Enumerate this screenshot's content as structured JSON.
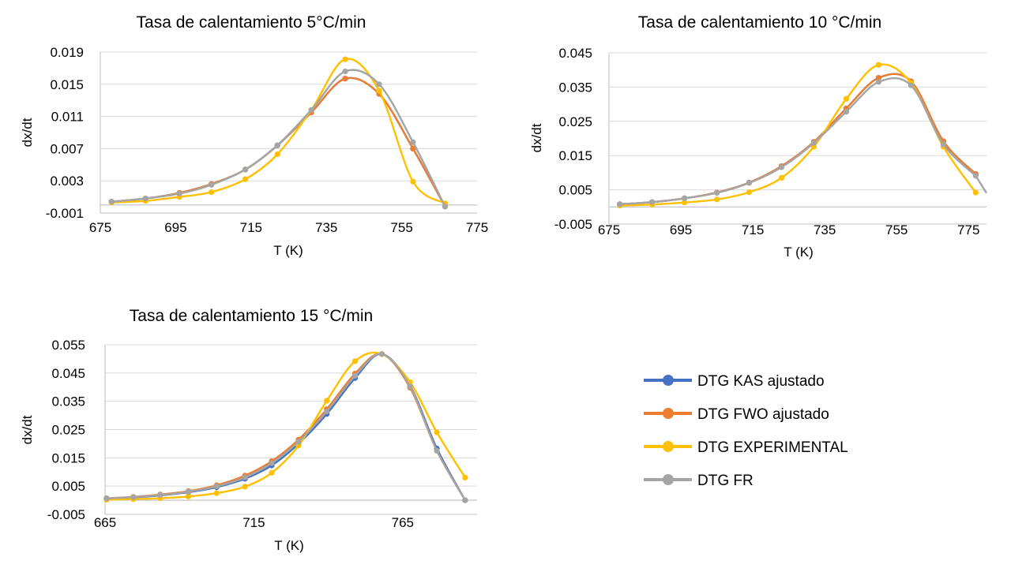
{
  "series_styles": [
    {
      "name": "DTG KAS ajustado",
      "color": "#4472c4"
    },
    {
      "name": "DTG FWO ajustado",
      "color": "#ed7d31"
    },
    {
      "name": "DTG EXPERIMENTAL",
      "color": "#ffc000"
    },
    {
      "name": "DTG FR",
      "color": "#a5a5a5"
    }
  ],
  "legend": {
    "items": [
      "DTG KAS ajustado",
      "DTG FWO ajustado",
      "DTG EXPERIMENTAL",
      "DTG FR"
    ]
  },
  "chart_data": [
    {
      "type": "line",
      "title": "Tasa de calentamiento 5°C/min",
      "xlabel": "T (K)",
      "ylabel": "dx/dt",
      "xlim": [
        675,
        775
      ],
      "ylim": [
        -0.001,
        0.019
      ],
      "xticks": [
        675,
        695,
        715,
        735,
        755,
        775
      ],
      "xtick_labels": [
        "675",
        "695",
        "715",
        "735",
        "755",
        "775"
      ],
      "yticks": [
        -0.001,
        0.003,
        0.007,
        0.011,
        0.015,
        0.019
      ],
      "ytick_labels": [
        "-0.001",
        "0.003",
        "0.007",
        "0.011",
        "0.015",
        "0.019"
      ],
      "grid": true,
      "x": [
        678,
        687,
        696,
        704.5,
        713.5,
        722,
        731,
        740,
        749,
        758,
        766.5
      ],
      "series": [
        {
          "name": "DTG KAS ajustado",
          "values": [
            0.0004,
            0.0008,
            0.0015,
            0.0026,
            0.0044,
            0.0074,
            0.0115,
            0.0157,
            0.0138,
            0.007,
            -0.0002
          ]
        },
        {
          "name": "DTG FWO ajustado",
          "values": [
            0.0004,
            0.0008,
            0.0015,
            0.0026,
            0.0044,
            0.0074,
            0.0115,
            0.0157,
            0.0138,
            0.007,
            -0.0002
          ]
        },
        {
          "name": "DTG EXPERIMENTAL",
          "values": [
            0.0003,
            0.0005,
            0.001,
            0.0016,
            0.0032,
            0.0063,
            0.0118,
            0.0181,
            0.0142,
            0.0029,
            0.0002
          ]
        },
        {
          "name": "DTG FR",
          "values": [
            0.0004,
            0.0008,
            0.0014,
            0.0025,
            0.0044,
            0.0074,
            0.0118,
            0.0166,
            0.015,
            0.0078,
            -0.0002
          ]
        }
      ]
    },
    {
      "type": "line",
      "title": "Tasa de calentamiento 10 °C/min",
      "xlabel": "T (K)",
      "ylabel": "dx/dt",
      "xlim": [
        675,
        780
      ],
      "ylim": [
        -0.005,
        0.045
      ],
      "xticks": [
        675,
        695,
        715,
        735,
        755,
        775
      ],
      "xtick_labels": [
        "675",
        "695",
        "715",
        "735",
        "755",
        "775"
      ],
      "yticks": [
        -0.005,
        0.005,
        0.015,
        0.025,
        0.035,
        0.045
      ],
      "ytick_labels": [
        "-0.005",
        "0.005",
        "0.015",
        "0.025",
        "0.035",
        "0.045"
      ],
      "grid": true,
      "x": [
        678,
        687,
        696,
        705,
        714,
        723,
        732,
        741,
        750,
        759,
        768,
        777
      ],
      "series": [
        {
          "name": "DTG KAS ajustado",
          "values": [
            0.0008,
            0.0014,
            0.0025,
            0.0042,
            0.0071,
            0.0119,
            0.019,
            0.0288,
            0.0377,
            0.0367,
            0.0192,
            0.0096
          ]
        },
        {
          "name": "DTG FWO ajustado",
          "values": [
            0.0008,
            0.0014,
            0.0025,
            0.0042,
            0.0071,
            0.0119,
            0.019,
            0.0288,
            0.0377,
            0.0367,
            0.0192,
            0.0096
          ]
        },
        {
          "name": "DTG EXPERIMENTAL",
          "values": [
            0.0004,
            0.0007,
            0.0013,
            0.0022,
            0.0043,
            0.0085,
            0.0176,
            0.0316,
            0.0415,
            0.0362,
            0.0176,
            0.0042
          ]
        },
        {
          "name": "DTG FR",
          "values": [
            0.0008,
            0.0014,
            0.0025,
            0.0041,
            0.007,
            0.0116,
            0.0187,
            0.0278,
            0.0365,
            0.0355,
            0.0183,
            0.0091
          ]
        }
      ]
    },
    {
      "type": "line",
      "title": "Tasa de calentamiento 15 °C/min",
      "xlabel": "T (K)",
      "ylabel": "dx/dt",
      "xlim": [
        665,
        790
      ],
      "ylim": [
        -0.005,
        0.055
      ],
      "xticks": [
        665,
        715,
        765
      ],
      "xtick_labels": [
        "665",
        "715",
        "765"
      ],
      "yticks": [
        -0.005,
        0.005,
        0.015,
        0.025,
        0.035,
        0.045,
        0.055
      ],
      "ytick_labels": [
        "-0.005",
        "0.005",
        "0.015",
        "0.025",
        "0.035",
        "0.045",
        "0.055"
      ],
      "grid": true,
      "x": [
        665.5,
        674.5,
        683.5,
        693,
        702.5,
        712,
        721,
        730,
        739.5,
        749,
        758,
        767.5,
        776.5,
        786
      ],
      "series": [
        {
          "name": "DTG KAS ajustado",
          "values": [
            0.0006,
            0.001,
            0.0017,
            0.0028,
            0.0046,
            0.0076,
            0.0123,
            0.02,
            0.0305,
            0.0432,
            0.0517,
            0.0405,
            0.0183,
            0.0
          ]
        },
        {
          "name": "DTG FWO ajustado",
          "values": [
            0.0007,
            0.0012,
            0.002,
            0.0032,
            0.0053,
            0.0087,
            0.0138,
            0.0214,
            0.0322,
            0.0448,
            0.0517,
            0.0398,
            0.0175,
            0.0
          ]
        },
        {
          "name": "DTG EXPERIMENTAL",
          "values": [
            0.0002,
            0.0004,
            0.0007,
            0.0013,
            0.0025,
            0.0048,
            0.0097,
            0.0193,
            0.0352,
            0.0492,
            0.0517,
            0.0418,
            0.024,
            0.008
          ]
        },
        {
          "name": "DTG FR",
          "values": [
            0.0006,
            0.0011,
            0.0018,
            0.003,
            0.0049,
            0.0081,
            0.0131,
            0.0207,
            0.0314,
            0.044,
            0.0517,
            0.0402,
            0.0175,
            0.0
          ]
        }
      ]
    }
  ]
}
